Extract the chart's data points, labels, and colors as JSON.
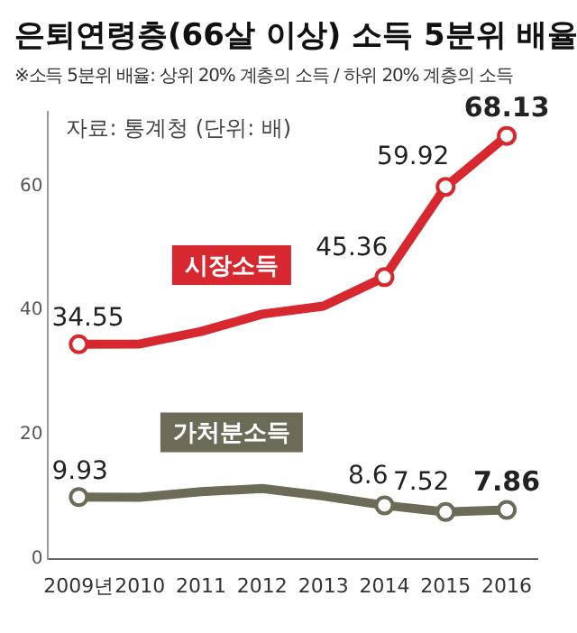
{
  "chart_data": {
    "type": "line",
    "title": "은퇴연령층(66살 이상) 소득 5분위 배율",
    "subtitle": "※소득 5분위 배율: 상위 20% 계층의 소득 / 하위 20% 계층의 소득",
    "annotations": [
      "자료: 통계청 (단위: 배)"
    ],
    "categories": [
      "2009년",
      "2010",
      "2011",
      "2012",
      "2013",
      "2014",
      "2015",
      "2016"
    ],
    "series": [
      {
        "name": "시장소득",
        "color": "#d7282f",
        "values": [
          34.55,
          34.6,
          36.6,
          39.4,
          40.7,
          45.36,
          59.92,
          68.13
        ],
        "value_labels": [
          "34.55",
          null,
          null,
          null,
          null,
          "45.36",
          "59.92",
          "68.13"
        ]
      },
      {
        "name": "가처분소득",
        "color": "#6b6b58",
        "values": [
          9.93,
          9.9,
          10.8,
          11.3,
          10.1,
          8.6,
          7.52,
          7.86
        ],
        "value_labels": [
          "9.93",
          null,
          null,
          null,
          null,
          "8.6",
          "7.52",
          "7.86"
        ]
      }
    ],
    "ylim": [
      0,
      72
    ],
    "yticks": [
      0,
      20,
      40,
      60
    ],
    "grid": false,
    "legend": false,
    "marker": "circle",
    "line_style": "solid"
  }
}
